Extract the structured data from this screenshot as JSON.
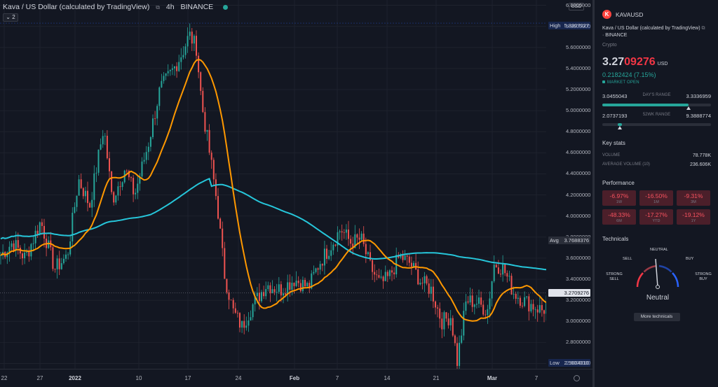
{
  "chart": {
    "title": "Kava / US Dollar (calculated by TradingView)",
    "interval": "4h",
    "exchange": "BINANCE",
    "indicator_toggle": "2",
    "currency_button": "USD",
    "y_ticks": [
      "6.0000000",
      "5.8000000",
      "5.6000000",
      "5.4000000",
      "5.2000000",
      "5.0000000",
      "4.8000000",
      "4.6000000",
      "4.4000000",
      "4.2000000",
      "4.0000000",
      "3.8000000",
      "3.6000000",
      "3.4000000",
      "3.2000000",
      "3.0000000",
      "2.8000000",
      "2.6000000"
    ],
    "high_label": "High",
    "high_value": "5.8307027",
    "avg_label": "Avg",
    "avg_value": "3.7688376",
    "price_value": "3.2709276",
    "low_label": "Low",
    "low_value": "2.5604010",
    "x_ticks": [
      "22",
      "27",
      "2022",
      "10",
      "17",
      "24",
      "Feb",
      "7",
      "14",
      "21",
      "Mar",
      "7"
    ],
    "colors": {
      "up": "#26a69a",
      "down": "#ef5350",
      "ma_fast": "#ff9800",
      "ma_slow": "#26c6da"
    }
  },
  "chart_data": {
    "type": "candlestick",
    "ylim": [
      2.55,
      6.05
    ],
    "anchors": [
      [
        0,
        3.62
      ],
      [
        18,
        3.75
      ],
      [
        36,
        3.6
      ],
      [
        58,
        3.95
      ],
      [
        78,
        3.5
      ],
      [
        96,
        3.62
      ],
      [
        112,
        4.35
      ],
      [
        128,
        4.1
      ],
      [
        148,
        4.85
      ],
      [
        160,
        4.15
      ],
      [
        178,
        4.45
      ],
      [
        192,
        4.2
      ],
      [
        212,
        4.7
      ],
      [
        228,
        5.2
      ],
      [
        248,
        5.4
      ],
      [
        260,
        5.55
      ],
      [
        270,
        5.72
      ],
      [
        280,
        5.6
      ],
      [
        288,
        5.05
      ],
      [
        300,
        4.55
      ],
      [
        310,
        4.1
      ],
      [
        320,
        3.45
      ],
      [
        332,
        3.1
      ],
      [
        345,
        2.95
      ],
      [
        360,
        3.15
      ],
      [
        380,
        3.35
      ],
      [
        400,
        3.3
      ],
      [
        420,
        3.4
      ],
      [
        440,
        3.32
      ],
      [
        455,
        3.55
      ],
      [
        470,
        3.7
      ],
      [
        486,
        3.88
      ],
      [
        500,
        3.75
      ],
      [
        515,
        3.78
      ],
      [
        528,
        3.52
      ],
      [
        542,
        3.35
      ],
      [
        555,
        3.42
      ],
      [
        570,
        3.62
      ],
      [
        585,
        3.55
      ],
      [
        600,
        3.38
      ],
      [
        615,
        3.3
      ],
      [
        630,
        3.0
      ],
      [
        643,
        3.05
      ],
      [
        652,
        2.62
      ],
      [
        665,
        3.2
      ],
      [
        680,
        3.18
      ],
      [
        695,
        3.1
      ],
      [
        705,
        3.55
      ],
      [
        718,
        3.5
      ],
      [
        732,
        3.28
      ],
      [
        746,
        3.2
      ],
      [
        760,
        3.15
      ],
      [
        775,
        3.1
      ],
      [
        786,
        3.27
      ]
    ]
  },
  "sidebar": {
    "symbol": "KAVAUSD",
    "logo_letter": "K",
    "description": "Kava / US Dollar (calculated by TradingView)",
    "exchange": "BINANCE",
    "type": "Crypto",
    "price_main": "3.27",
    "price_highlight": "09276",
    "price_currency": "USD",
    "change": "0.2182424 (7.15%)",
    "market_status": "MARKET OPEN",
    "days_range": {
      "low": "3.0455043",
      "label": "DAY'S RANGE",
      "high": "3.3336959",
      "position": 0.78
    },
    "wk52_range": {
      "low": "2.0737193",
      "label": "52WK RANGE",
      "high": "9.3888774",
      "position": 0.16
    },
    "key_stats_title": "Key stats",
    "volume_label": "VOLUME",
    "volume_value": "78.778K",
    "avg_volume_label": "AVERAGE VOLUME (10)",
    "avg_volume_value": "236.606K",
    "performance_title": "Performance",
    "performance": [
      {
        "value": "-6.97%",
        "label": "1W"
      },
      {
        "value": "-16.50%",
        "label": "1M"
      },
      {
        "value": "-9.31%",
        "label": "3M"
      },
      {
        "value": "-48.33%",
        "label": "6M"
      },
      {
        "value": "-17.27%",
        "label": "YTD"
      },
      {
        "value": "-19.12%",
        "label": "1Y"
      }
    ],
    "technicals_title": "Technicals",
    "gauge": {
      "strong_sell": "STRONG SELL",
      "sell": "SELL",
      "neutral_top": "NEUTRAL",
      "buy": "BUY",
      "strong_buy": "STRONG BUY",
      "result": "Neutral",
      "button": "More technicals"
    }
  }
}
